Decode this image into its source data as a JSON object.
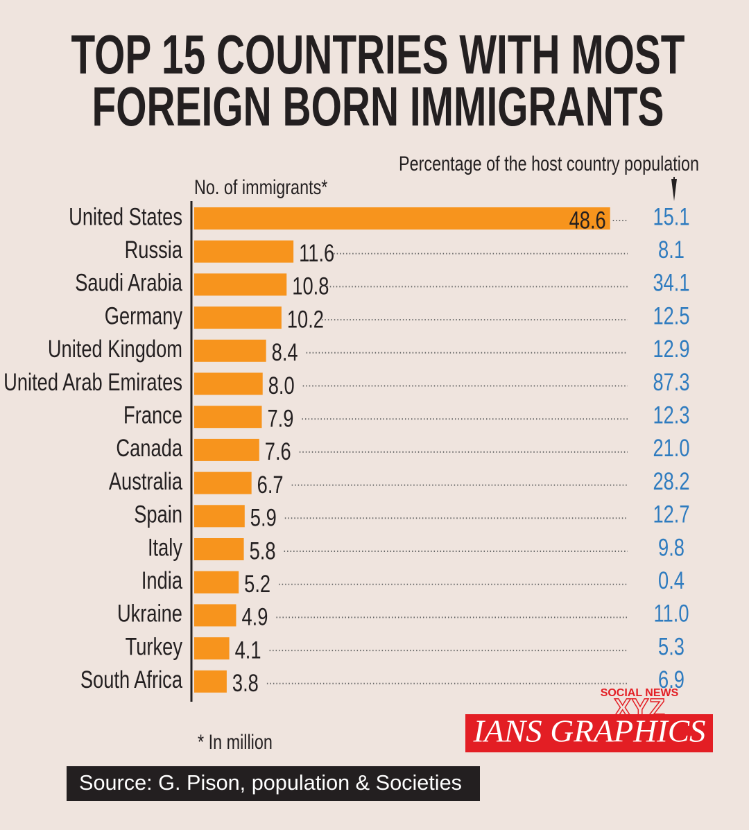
{
  "chart_data": {
    "type": "bar",
    "orientation": "horizontal",
    "title": [
      "TOP 15 COUNTRIES WITH MOST",
      "FOREIGN BORN IMMIGRANTS"
    ],
    "categories": [
      "United States",
      "Russia",
      "Saudi Arabia",
      "Germany",
      "United Kingdom",
      "United Arab Emirates",
      "France",
      "Canada",
      "Australia",
      "Spain",
      "Italy",
      "India",
      "Ukraine",
      "Turkey",
      "South Africa"
    ],
    "series": [
      {
        "name": "No. of immigrants*",
        "color": "#f7941d",
        "values": [
          48.6,
          11.6,
          10.8,
          10.2,
          8.4,
          8.0,
          7.9,
          7.6,
          6.7,
          5.9,
          5.8,
          5.2,
          4.9,
          4.1,
          3.8
        ],
        "value_labels": [
          "48.6",
          "11.6",
          "10.8",
          "10.2",
          "8.4",
          "8.0",
          "7.9",
          "7.6",
          "6.7",
          "5.9",
          "5.8",
          "5.2",
          "4.9",
          "4.1",
          "3.8"
        ]
      },
      {
        "name": "Percentage of the host country population",
        "color": "#2e7bbf",
        "values": [
          15.1,
          8.1,
          34.1,
          12.5,
          12.9,
          87.3,
          12.3,
          21.0,
          28.2,
          12.7,
          9.8,
          0.4,
          11.0,
          5.3,
          6.9
        ],
        "value_labels": [
          "15.1",
          "8.1",
          "34.1",
          "12.5",
          "12.9",
          "87.3",
          "12.3",
          "21.0",
          "28.2",
          "12.7",
          "9.8",
          "0.4",
          "11.0",
          "5.3",
          "6.9"
        ]
      }
    ],
    "xlim": [
      0,
      50
    ],
    "footnote": "* In million",
    "credit": "IANS GRAPHICS",
    "watermark": [
      "SOCIAL NEWS",
      "XYZ"
    ],
    "source": "Source: G. Pison, population & Societies"
  }
}
